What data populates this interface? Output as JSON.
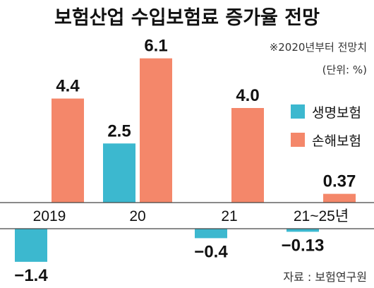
{
  "chart_data": {
    "type": "bar",
    "title": "보험산업 수입보험료 증가율 전망",
    "note": "※2020년부터 전망치",
    "unit": "(단위: %)",
    "source": "자료 : 보험연구원",
    "categories": [
      "2019",
      "20",
      "21",
      "21~25년"
    ],
    "series": [
      {
        "name": "생명보험",
        "color": "#3cb8cf",
        "values": [
          -1.4,
          2.5,
          -0.4,
          -0.13
        ],
        "labels": [
          "−1.4",
          "2.5",
          "−0.4",
          "−0.13"
        ]
      },
      {
        "name": "손해보험",
        "color": "#f4876a",
        "values": [
          4.4,
          6.1,
          4.0,
          0.37
        ],
        "labels": [
          "4.4",
          "6.1",
          "4.0",
          "0.37"
        ]
      }
    ],
    "legend_position": "right",
    "grid": false
  }
}
